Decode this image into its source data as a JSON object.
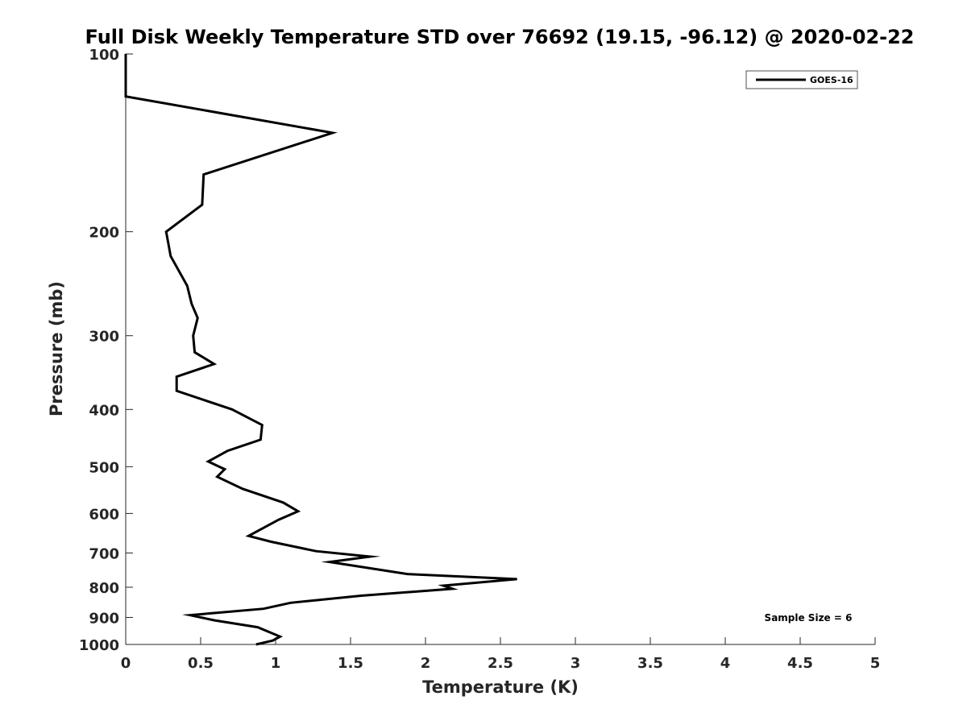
{
  "chart_data": {
    "type": "line",
    "title": "Full Disk Weekly Temperature STD over 76692 (19.15, -96.12) @ 2020-02-22",
    "xlabel": "Temperature (K)",
    "ylabel": "Pressure (mb)",
    "xlim": [
      0,
      5
    ],
    "ylim": [
      1000,
      100
    ],
    "y_scale": "log",
    "y_reversed": true,
    "grid": false,
    "legend_position": "top-right",
    "x_ticks": [
      0,
      0.5,
      1,
      1.5,
      2,
      2.5,
      3,
      3.5,
      4,
      4.5,
      5
    ],
    "x_tick_labels": [
      "0",
      "0.5",
      "1",
      "1.5",
      "2",
      "2.5",
      "3",
      "3.5",
      "4",
      "4.5",
      "5"
    ],
    "y_ticks": [
      100,
      200,
      300,
      400,
      500,
      600,
      700,
      800,
      900,
      1000
    ],
    "y_tick_labels": [
      "100",
      "200",
      "300",
      "400",
      "500",
      "600",
      "700",
      "800",
      "900",
      "1000"
    ],
    "series": [
      {
        "name": "GOES-16",
        "color": "#000000",
        "points": [
          [
            0.0,
            100
          ],
          [
            0.0,
            118
          ],
          [
            1.38,
            136
          ],
          [
            0.52,
            160
          ],
          [
            0.51,
            180
          ],
          [
            0.27,
            200
          ],
          [
            0.3,
            220
          ],
          [
            0.41,
            247
          ],
          [
            0.44,
            265
          ],
          [
            0.48,
            280
          ],
          [
            0.45,
            300
          ],
          [
            0.46,
            320
          ],
          [
            0.59,
            335
          ],
          [
            0.34,
            352
          ],
          [
            0.34,
            372
          ],
          [
            0.71,
            400
          ],
          [
            0.91,
            425
          ],
          [
            0.9,
            450
          ],
          [
            0.68,
            470
          ],
          [
            0.55,
            490
          ],
          [
            0.66,
            505
          ],
          [
            0.61,
            520
          ],
          [
            0.78,
            545
          ],
          [
            1.05,
            575
          ],
          [
            1.15,
            595
          ],
          [
            1.02,
            615
          ],
          [
            0.82,
            655
          ],
          [
            0.97,
            670
          ],
          [
            1.27,
            695
          ],
          [
            1.63,
            710
          ],
          [
            1.36,
            725
          ],
          [
            1.88,
            760
          ],
          [
            2.61,
            775
          ],
          [
            2.12,
            795
          ],
          [
            2.18,
            805
          ],
          [
            1.57,
            827
          ],
          [
            1.1,
            850
          ],
          [
            0.92,
            870
          ],
          [
            0.43,
            892
          ],
          [
            0.59,
            910
          ],
          [
            0.88,
            935
          ],
          [
            1.03,
            970
          ],
          [
            0.98,
            985
          ],
          [
            0.87,
            1000
          ]
        ]
      }
    ],
    "annotation": "Sample Size = 6"
  }
}
